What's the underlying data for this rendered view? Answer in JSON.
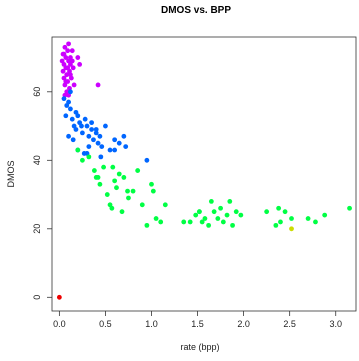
{
  "chart_data": {
    "type": "scatter",
    "title": "DMOS vs. BPP",
    "xlabel": "rate (bpp)",
    "ylabel": "DMOS",
    "xlim": [
      -0.08,
      3.22
    ],
    "ylim": [
      -4,
      76
    ],
    "xticks": [
      0.0,
      0.5,
      1.0,
      1.5,
      2.0,
      2.5,
      3.0
    ],
    "xtick_labels": [
      "0.0",
      "0.5",
      "1.0",
      "1.5",
      "2.0",
      "2.5",
      "3.0"
    ],
    "yticks": [
      0,
      20,
      40,
      60
    ],
    "ytick_labels": [
      "0",
      "20",
      "40",
      "60"
    ],
    "grid": false,
    "legend": "none",
    "series": [
      {
        "color": "#cc00ff",
        "points": [
          [
            0.03,
            69
          ],
          [
            0.04,
            66
          ],
          [
            0.04,
            71
          ],
          [
            0.05,
            64
          ],
          [
            0.05,
            68
          ],
          [
            0.06,
            73
          ],
          [
            0.06,
            62
          ],
          [
            0.07,
            67
          ],
          [
            0.07,
            70
          ],
          [
            0.08,
            65
          ],
          [
            0.08,
            60
          ],
          [
            0.09,
            72
          ],
          [
            0.09,
            63
          ],
          [
            0.1,
            69
          ],
          [
            0.1,
            74
          ],
          [
            0.11,
            66
          ],
          [
            0.11,
            61
          ],
          [
            0.12,
            68
          ],
          [
            0.12,
            70
          ],
          [
            0.13,
            64
          ],
          [
            0.14,
            72
          ],
          [
            0.15,
            67
          ],
          [
            0.16,
            62
          ],
          [
            0.05,
            71
          ],
          [
            0.07,
            63
          ],
          [
            0.09,
            67
          ],
          [
            0.12,
            65
          ],
          [
            0.14,
            69
          ],
          [
            0.2,
            70
          ],
          [
            0.22,
            68
          ],
          [
            0.42,
            62
          ],
          [
            0.06,
            59
          ],
          [
            0.1,
            59
          ]
        ]
      },
      {
        "color": "#0066ff",
        "points": [
          [
            0.05,
            58
          ],
          [
            0.08,
            56
          ],
          [
            0.1,
            57
          ],
          [
            0.12,
            55
          ],
          [
            0.07,
            53
          ],
          [
            0.14,
            52
          ],
          [
            0.16,
            50
          ],
          [
            0.18,
            49
          ],
          [
            0.2,
            53
          ],
          [
            0.22,
            51
          ],
          [
            0.25,
            48
          ],
          [
            0.28,
            52
          ],
          [
            0.3,
            50
          ],
          [
            0.32,
            47
          ],
          [
            0.35,
            49
          ],
          [
            0.37,
            46
          ],
          [
            0.4,
            48
          ],
          [
            0.42,
            45
          ],
          [
            0.44,
            47
          ],
          [
            0.46,
            44
          ],
          [
            0.5,
            50
          ],
          [
            0.55,
            43
          ],
          [
            0.6,
            46
          ],
          [
            0.65,
            45
          ],
          [
            0.7,
            47
          ],
          [
            0.72,
            44
          ],
          [
            0.1,
            47
          ],
          [
            0.15,
            46
          ],
          [
            0.2,
            43
          ],
          [
            0.27,
            42
          ],
          [
            0.32,
            44
          ],
          [
            0.4,
            49
          ],
          [
            0.45,
            41
          ],
          [
            0.3,
            42
          ],
          [
            0.95,
            40
          ],
          [
            0.12,
            60
          ],
          [
            0.18,
            54
          ],
          [
            0.24,
            50
          ],
          [
            0.35,
            51
          ],
          [
            0.6,
            43
          ]
        ]
      },
      {
        "color": "#00ff44",
        "points": [
          [
            0.2,
            43
          ],
          [
            0.25,
            40
          ],
          [
            0.32,
            41
          ],
          [
            0.38,
            37
          ],
          [
            0.4,
            35
          ],
          [
            0.44,
            33
          ],
          [
            0.48,
            38
          ],
          [
            0.52,
            30
          ],
          [
            0.55,
            27
          ],
          [
            0.58,
            38
          ],
          [
            0.6,
            34
          ],
          [
            0.62,
            32
          ],
          [
            0.65,
            36
          ],
          [
            0.68,
            25
          ],
          [
            0.7,
            35
          ],
          [
            0.75,
            29
          ],
          [
            0.8,
            31
          ],
          [
            0.85,
            37
          ],
          [
            0.9,
            27
          ],
          [
            0.95,
            21
          ],
          [
            1.0,
            33
          ],
          [
            1.02,
            31
          ],
          [
            1.05,
            23
          ],
          [
            1.1,
            22
          ],
          [
            1.15,
            27
          ],
          [
            1.35,
            22
          ],
          [
            1.42,
            22
          ],
          [
            1.48,
            24
          ],
          [
            1.52,
            25
          ],
          [
            1.55,
            22
          ],
          [
            1.58,
            23
          ],
          [
            1.62,
            21
          ],
          [
            1.65,
            28
          ],
          [
            1.68,
            25
          ],
          [
            1.72,
            23
          ],
          [
            1.75,
            26
          ],
          [
            1.78,
            22
          ],
          [
            1.82,
            24
          ],
          [
            1.85,
            28
          ],
          [
            1.88,
            21
          ],
          [
            1.92,
            25
          ],
          [
            1.97,
            24
          ],
          [
            2.25,
            25
          ],
          [
            2.35,
            21
          ],
          [
            2.38,
            26
          ],
          [
            2.45,
            25
          ],
          [
            2.52,
            23
          ],
          [
            2.7,
            23
          ],
          [
            2.78,
            22
          ],
          [
            2.88,
            24
          ],
          [
            3.15,
            26
          ],
          [
            0.42,
            35
          ],
          [
            0.57,
            26
          ],
          [
            0.74,
            31
          ],
          [
            2.4,
            22
          ],
          [
            1.52,
            25
          ]
        ]
      },
      {
        "color": "#ccdd00",
        "points": [
          [
            2.52,
            20
          ]
        ]
      },
      {
        "color": "#ee0000",
        "points": [
          [
            0.0,
            0
          ]
        ]
      }
    ]
  }
}
